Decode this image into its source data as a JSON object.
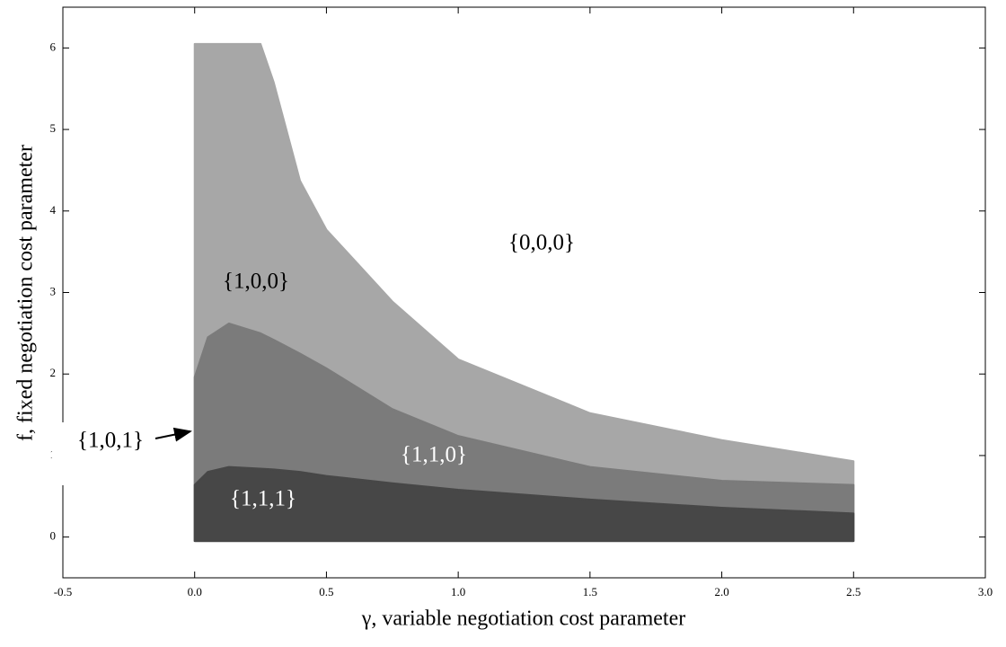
{
  "chart_data": {
    "type": "region",
    "x_label": "γ, variable negotiation cost parameter",
    "y_label": "f, fixed negotiation cost parameter",
    "xlim": [
      -0.5,
      3.0
    ],
    "xticks": [
      -0.5,
      {
        "value": 0,
        "label": "0.0"
      },
      0.5,
      {
        "value": 1,
        "label": "1.0"
      },
      1.5,
      {
        "value": 2,
        "label": "2.0"
      },
      2.5,
      {
        "value": 3,
        "label": "3.0"
      }
    ],
    "ylim": [
      -0.5,
      6.5
    ],
    "yticks": [
      0,
      1,
      2,
      3,
      4,
      5,
      6
    ],
    "baseline": -0.05,
    "x": [
      0,
      0.05,
      0.13,
      0.25,
      0.3,
      0.4,
      0.5,
      0.75,
      1.0,
      1.5,
      2.0,
      2.5
    ],
    "series": [
      {
        "name": "{1,1,1}",
        "color": "#474747",
        "values": [
          0.64,
          0.8,
          0.86,
          0.84,
          0.83,
          0.8,
          0.75,
          0.66,
          0.58,
          0.46,
          0.36,
          0.29
        ]
      },
      {
        "name": "{1,1,0}",
        "color": "#7b7b7b",
        "values": [
          1.96,
          2.45,
          2.62,
          2.5,
          2.42,
          2.25,
          2.07,
          1.57,
          1.24,
          0.86,
          0.69,
          0.64
        ]
      },
      {
        "name": "{1,0,0}",
        "color": "#a7a7a7",
        "values": [
          6.05,
          6.05,
          6.05,
          6.05,
          5.58,
          4.37,
          3.77,
          2.89,
          2.18,
          1.52,
          1.19,
          0.93
        ]
      }
    ],
    "annotations": [
      "{0,0,0}",
      "{1,0,1}"
    ]
  }
}
